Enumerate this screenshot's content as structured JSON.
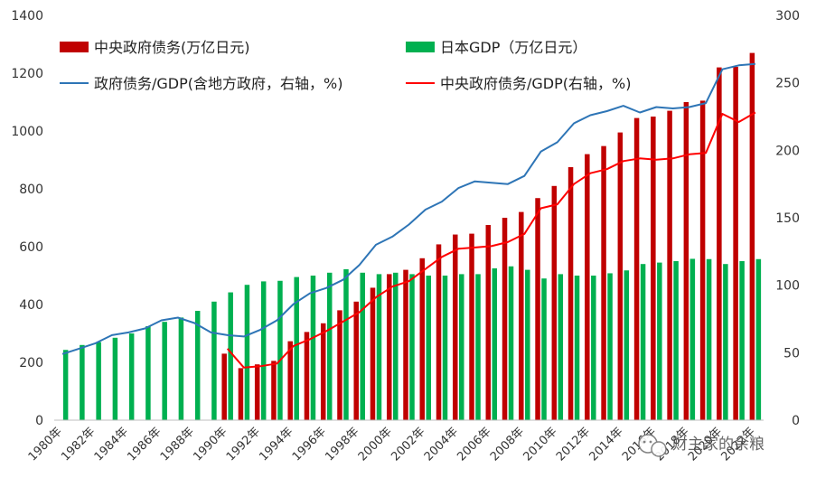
{
  "chart_data": {
    "type": "bar+line",
    "x": [
      "1980年",
      "1981年",
      "1982年",
      "1983年",
      "1984年",
      "1985年",
      "1986年",
      "1987年",
      "1988年",
      "1989年",
      "1990年",
      "1991年",
      "1992年",
      "1993年",
      "1994年",
      "1995年",
      "1996年",
      "1997年",
      "1998年",
      "1999年",
      "2000年",
      "2001年",
      "2002年",
      "2003年",
      "2004年",
      "2005年",
      "2006年",
      "2007年",
      "2008年",
      "2009年",
      "2010年",
      "2011年",
      "2012年",
      "2013年",
      "2014年",
      "2015年",
      "2016年",
      "2017年",
      "2018年",
      "2019年",
      "2020年",
      "2021年",
      "2022年"
    ],
    "x_tick_labels": [
      "1980年",
      "1982年",
      "1984年",
      "1986年",
      "1988年",
      "1990年",
      "1992年",
      "1994年",
      "1996年",
      "1998年",
      "2000年",
      "2002年",
      "2004年",
      "2006年",
      "2008年",
      "2010年",
      "2012年",
      "2014年",
      "2016年",
      "2018年",
      "2020年",
      "2022年"
    ],
    "y_left": {
      "ticks": [
        0,
        200,
        400,
        600,
        800,
        1000,
        1200,
        1400
      ],
      "ylim": [
        0,
        1400
      ]
    },
    "y_right": {
      "ticks": [
        0,
        50,
        100,
        150,
        200,
        250,
        300
      ],
      "ylim": [
        0,
        300
      ]
    },
    "legend_placement": "top",
    "series": [
      {
        "name": "中央政府债务(万亿日元)",
        "kind": "bar",
        "axis": "left",
        "color": "#C00000",
        "values": [
          null,
          null,
          null,
          null,
          null,
          null,
          null,
          null,
          null,
          null,
          230,
          180,
          193,
          205,
          273,
          305,
          335,
          380,
          410,
          458,
          505,
          520,
          560,
          608,
          642,
          645,
          675,
          700,
          720,
          768,
          810,
          875,
          920,
          948,
          995,
          1045,
          1050,
          1070,
          1100,
          1105,
          1220,
          1222,
          1270
        ]
      },
      {
        "name": "日本GDP（万亿日元）",
        "kind": "bar",
        "axis": "left",
        "color": "#00B050",
        "values": [
          243,
          260,
          270,
          285,
          300,
          325,
          340,
          355,
          378,
          410,
          442,
          468,
          480,
          482,
          495,
          500,
          510,
          522,
          510,
          505,
          510,
          505,
          500,
          500,
          505,
          505,
          525,
          532,
          520,
          490,
          505,
          500,
          500,
          508,
          518,
          540,
          545,
          550,
          558,
          557,
          540,
          550,
          557
        ]
      },
      {
        "name": "政府债务/GDP(含地方政府，右轴，%)",
        "kind": "line",
        "axis": "right",
        "color": "#2E75B6",
        "values": [
          49,
          53,
          57,
          63,
          65,
          68,
          74,
          76,
          72,
          65,
          63,
          62,
          67,
          74,
          86,
          94,
          98,
          104,
          115,
          130,
          136,
          145,
          156,
          162,
          172,
          177,
          176,
          175,
          181,
          199,
          206,
          220,
          226,
          229,
          233,
          228,
          232,
          231,
          232,
          235,
          260,
          263,
          264
        ]
      },
      {
        "name": "中央政府债务/GDP(右轴，%)",
        "kind": "line",
        "axis": "right",
        "color": "#FF0000",
        "values": [
          null,
          null,
          null,
          null,
          null,
          null,
          null,
          null,
          null,
          null,
          53,
          39,
          40,
          42,
          55,
          60,
          66,
          73,
          80,
          91,
          99,
          103,
          112,
          121,
          127,
          128,
          129,
          132,
          138,
          157,
          160,
          175,
          183,
          186,
          192,
          194,
          193,
          194,
          197,
          198,
          227,
          221,
          228
        ]
      }
    ]
  },
  "watermark": {
    "text": "财主家的余粮",
    "icon": "wechat-icon"
  }
}
